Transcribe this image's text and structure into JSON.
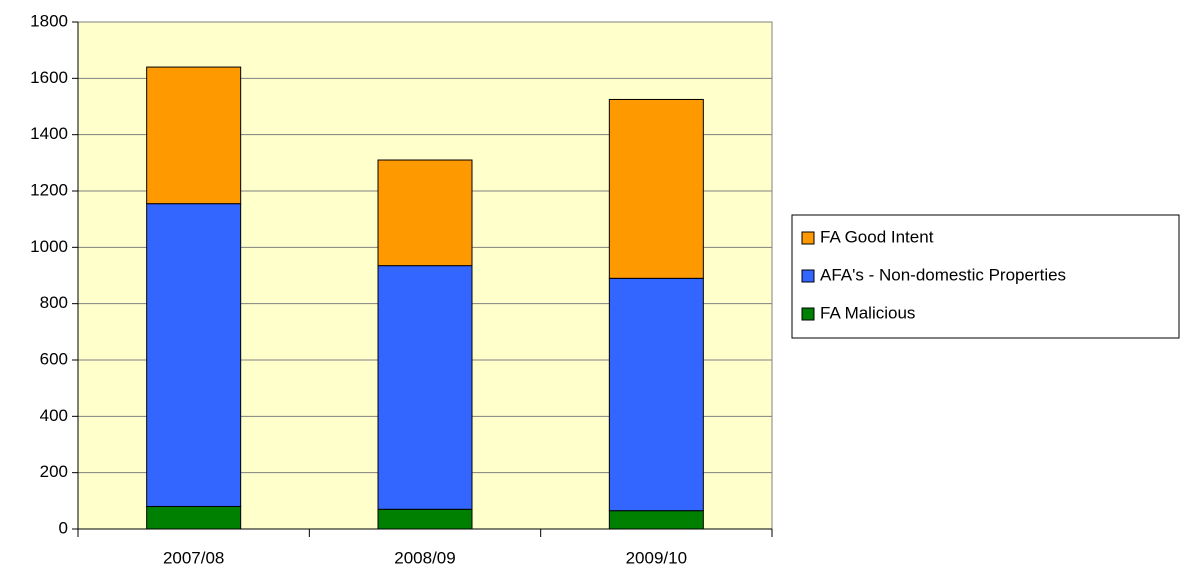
{
  "chart_data": {
    "type": "bar",
    "stacked": true,
    "categories": [
      "2007/08",
      "2008/09",
      "2009/10"
    ],
    "series": [
      {
        "name": "FA Malicious",
        "color": "#008000",
        "values": [
          80,
          70,
          65
        ]
      },
      {
        "name": "AFA's - Non-domestic Properties",
        "color": "#3366ff",
        "values": [
          1075,
          865,
          825
        ]
      },
      {
        "name": "FA Good Intent",
        "color": "#ff9900",
        "values": [
          485,
          375,
          635
        ]
      }
    ],
    "ylim": [
      0,
      1800
    ],
    "yticks": [
      0,
      200,
      400,
      600,
      800,
      1000,
      1200,
      1400,
      1600,
      1800
    ],
    "grid": true,
    "legend": "right"
  }
}
